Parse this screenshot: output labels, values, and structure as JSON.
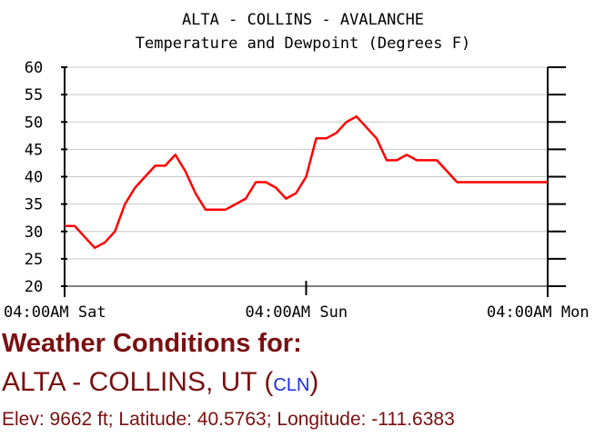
{
  "chart_data": {
    "type": "line",
    "title": "ALTA - COLLINS - AVALANCHE",
    "subtitle": "Temperature and Dewpoint (Degrees F)",
    "xlabel": "",
    "ylabel": "",
    "ylim": [
      20,
      60
    ],
    "yticks": [
      "60",
      "55",
      "50",
      "45",
      "40",
      "35",
      "30",
      "25",
      "20"
    ],
    "xlim": [
      0,
      48
    ],
    "xticks": [
      {
        "x": 0,
        "label": "04:00AM Sat"
      },
      {
        "x": 24,
        "label": "04:00AM Sun"
      },
      {
        "x": 48,
        "label": "04:00AM Mon"
      }
    ],
    "grid": true,
    "color": "#ff0000",
    "series": [
      {
        "x": [
          0,
          1,
          2,
          3,
          4,
          5,
          6,
          7,
          8,
          9,
          10,
          11,
          12,
          13,
          14,
          15,
          16,
          17,
          18,
          19,
          20,
          21,
          22,
          23,
          24,
          25,
          26,
          27,
          28,
          29,
          30,
          31,
          32,
          33,
          34,
          35,
          36,
          37,
          38,
          39,
          40,
          41,
          42,
          43,
          44,
          45,
          46,
          47,
          48
        ],
        "y": [
          31,
          31,
          29,
          27,
          28,
          30,
          35,
          38,
          40,
          42,
          42,
          44,
          41,
          37,
          34,
          34,
          34,
          35,
          36,
          39,
          39,
          38,
          36,
          37,
          40,
          47,
          47,
          48,
          50,
          51,
          49,
          47,
          43,
          43,
          44,
          43,
          43,
          43,
          41,
          39,
          39,
          39,
          39,
          39,
          39,
          39,
          39,
          39,
          39
        ]
      }
    ]
  },
  "info": {
    "heading": "Weather Conditions for:",
    "station_name": "ALTA - COLLINS, UT (",
    "station_code": "CLN",
    "station_close": ")",
    "location": "Elev: 9662 ft; Latitude: 40.5763; Longitude: -111.6383"
  }
}
